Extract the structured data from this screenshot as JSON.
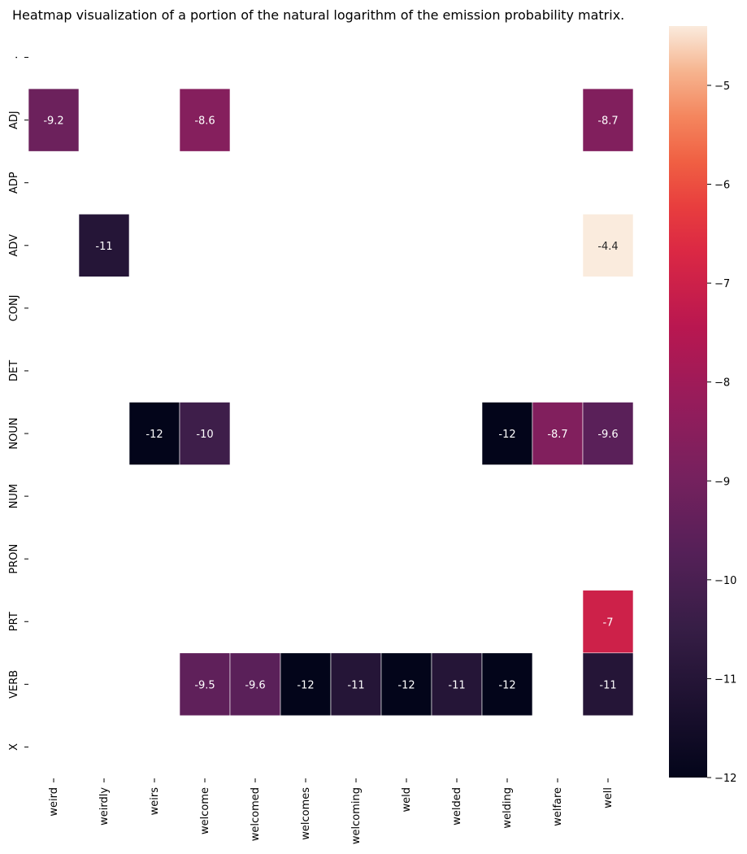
{
  "chart_data": {
    "type": "heatmap",
    "title": "Heatmap visualization of a portion of the natural logarithm of the emission probability matrix.",
    "rows": [
      ".",
      "ADJ",
      "ADP",
      "ADV",
      "CONJ",
      "DET",
      "NOUN",
      "NUM",
      "PRON",
      "PRT",
      "VERB",
      "X"
    ],
    "columns": [
      "weird",
      "weirdly",
      "weirs",
      "welcome",
      "welcomed",
      "welcomes",
      "welcoming",
      "weld",
      "welded",
      "welding",
      "welfare",
      "well"
    ],
    "cells": [
      {
        "row": "ADJ",
        "col": "weird",
        "value": -9.2,
        "label": "-9.2"
      },
      {
        "row": "ADJ",
        "col": "welcome",
        "value": -8.6,
        "label": "-8.6"
      },
      {
        "row": "ADJ",
        "col": "well",
        "value": -8.7,
        "label": "-8.7"
      },
      {
        "row": "ADV",
        "col": "weirdly",
        "value": -11,
        "label": "-11"
      },
      {
        "row": "ADV",
        "col": "well",
        "value": -4.4,
        "label": "-4.4"
      },
      {
        "row": "NOUN",
        "col": "weirs",
        "value": -12,
        "label": "-12"
      },
      {
        "row": "NOUN",
        "col": "welcome",
        "value": -10.3,
        "label": "-10"
      },
      {
        "row": "NOUN",
        "col": "welding",
        "value": -12,
        "label": "-12"
      },
      {
        "row": "NOUN",
        "col": "welfare",
        "value": -8.7,
        "label": "-8.7"
      },
      {
        "row": "NOUN",
        "col": "well",
        "value": -9.6,
        "label": "-9.6"
      },
      {
        "row": "PRT",
        "col": "well",
        "value": -7,
        "label": "-7"
      },
      {
        "row": "VERB",
        "col": "welcome",
        "value": -9.5,
        "label": "-9.5"
      },
      {
        "row": "VERB",
        "col": "welcomed",
        "value": -9.6,
        "label": "-9.6"
      },
      {
        "row": "VERB",
        "col": "welcomes",
        "value": -12,
        "label": "-12"
      },
      {
        "row": "VERB",
        "col": "welcoming",
        "value": -11,
        "label": "-11"
      },
      {
        "row": "VERB",
        "col": "weld",
        "value": -12,
        "label": "-12"
      },
      {
        "row": "VERB",
        "col": "welded",
        "value": -11,
        "label": "-11"
      },
      {
        "row": "VERB",
        "col": "welding",
        "value": -12,
        "label": "-12"
      },
      {
        "row": "VERB",
        "col": "well",
        "value": -11,
        "label": "-11"
      }
    ],
    "colorbar": {
      "min": -12,
      "max": -4.4,
      "ticks": [
        -12,
        -11,
        -10,
        -9,
        -8,
        -7,
        -6,
        -5
      ],
      "tick_labels": [
        "−12",
        "−11",
        "−10",
        "−9",
        "−8",
        "−7",
        "−6",
        "−5"
      ]
    },
    "colormap": "rocket",
    "grid": false
  }
}
